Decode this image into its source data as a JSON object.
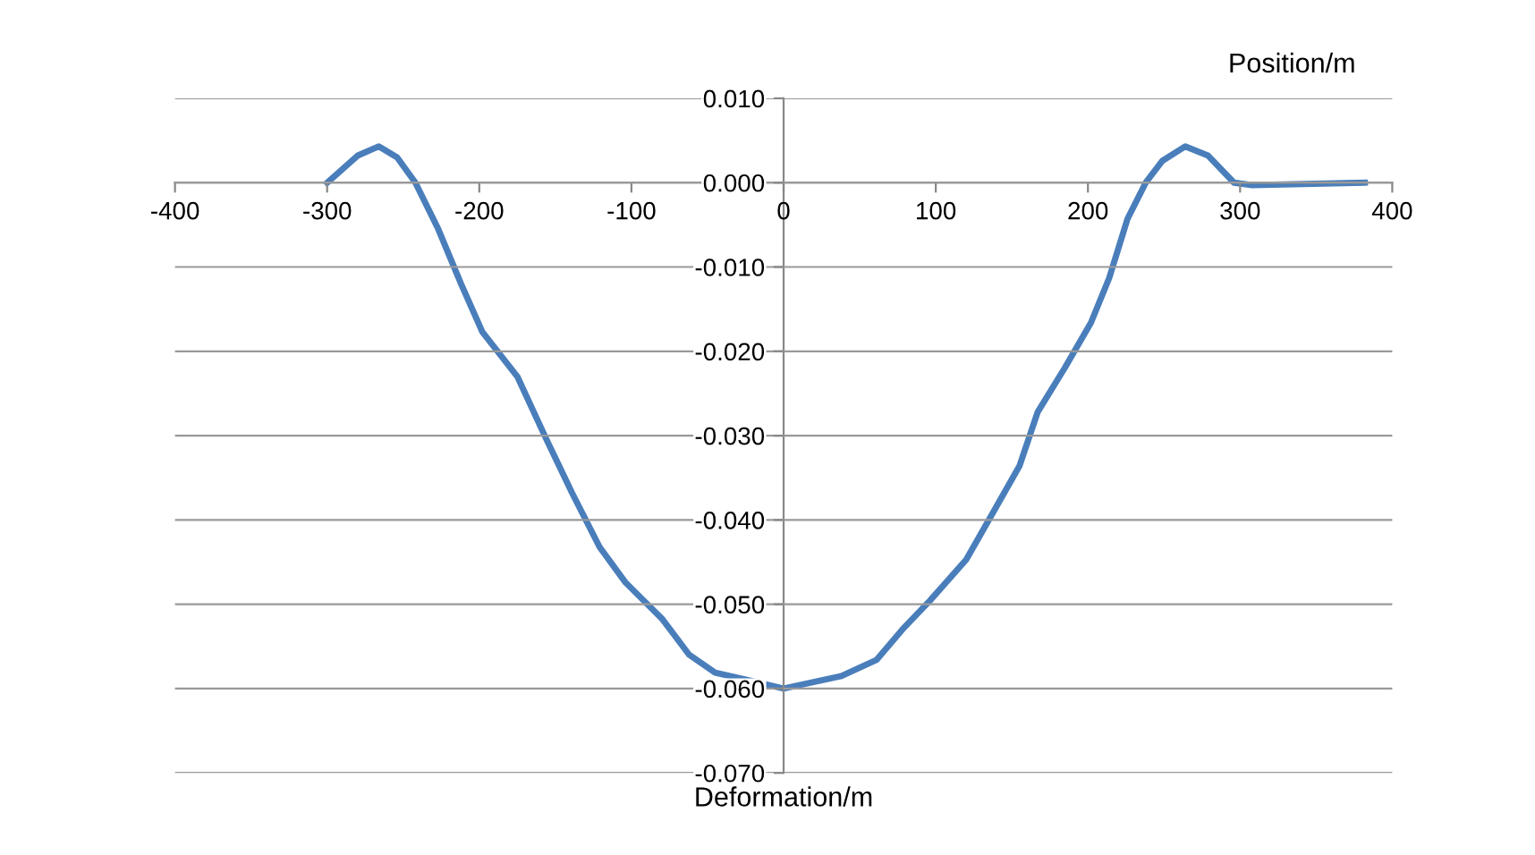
{
  "chart_data": {
    "type": "line",
    "xlabel": "Position/m",
    "annotations": [
      "Deformation/m"
    ],
    "series": [
      {
        "color": "#4a7ebb",
        "x": [
          -300,
          -280,
          -266,
          -254,
          -242,
          -227,
          -212,
          -198,
          -175,
          -156,
          -139,
          -121,
          -104,
          -80,
          -62,
          -45,
          -21,
          0,
          38,
          61,
          79,
          96,
          120,
          138,
          155,
          167,
          185,
          202,
          214,
          226,
          238,
          249,
          264,
          279,
          296,
          308,
          382
        ],
        "values": [
          0.0,
          0.0032,
          0.0043,
          0.003,
          0.0,
          -0.0055,
          -0.012,
          -0.0177,
          -0.023,
          -0.0304,
          -0.0368,
          -0.0432,
          -0.0474,
          -0.0517,
          -0.056,
          -0.0581,
          -0.0591,
          -0.06,
          -0.0585,
          -0.0566,
          -0.0528,
          -0.0496,
          -0.0447,
          -0.039,
          -0.0336,
          -0.0272,
          -0.0219,
          -0.0166,
          -0.0113,
          -0.0043,
          0.0,
          0.0026,
          0.0043,
          0.0032,
          0.0,
          -0.0003,
          0.0
        ]
      }
    ],
    "xlim": [
      -400,
      400
    ],
    "xticks": [
      -400,
      -300,
      -200,
      -100,
      0,
      100,
      200,
      300,
      400
    ],
    "ylim": [
      -0.07,
      0.01
    ],
    "yticks": [
      {
        "value": 0.01,
        "label": "0.010"
      },
      {
        "value": 0,
        "label": "0.000"
      },
      {
        "value": -0.01,
        "label": "-0.010"
      },
      {
        "value": -0.02,
        "label": "-0.020"
      },
      {
        "value": -0.03,
        "label": "-0.030"
      },
      {
        "value": -0.04,
        "label": "-0.040"
      },
      {
        "value": -0.05,
        "label": "-0.050"
      },
      {
        "value": -0.06,
        "label": "-0.060"
      },
      {
        "value": -0.07,
        "label": "-0.070"
      }
    ],
    "grid": "y",
    "marker": "none",
    "line_style": "solid",
    "legend": false
  }
}
